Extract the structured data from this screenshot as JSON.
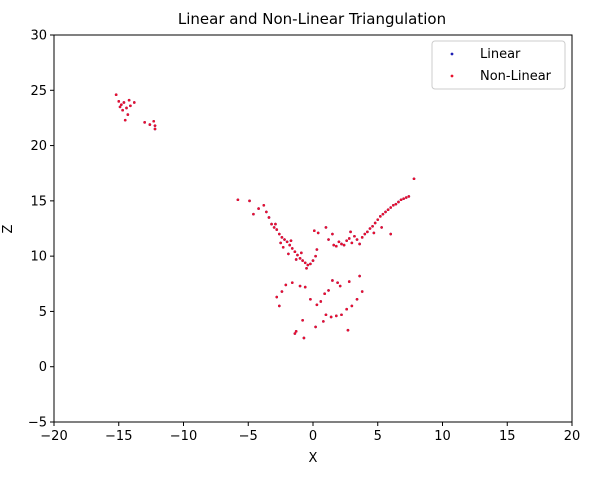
{
  "chart_data": {
    "type": "scatter",
    "title": "Linear and Non-Linear Triangulation",
    "xlabel": "X",
    "ylabel": "Z",
    "xlim": [
      -20,
      20
    ],
    "ylim": [
      -5,
      30
    ],
    "xticks": [
      "−20",
      "−15",
      "−10",
      "−5",
      "0",
      "5",
      "10",
      "15",
      "20"
    ],
    "xtick_values": [
      -20,
      -15,
      -10,
      -5,
      0,
      5,
      10,
      15,
      20
    ],
    "yticks": [
      "−5",
      "0",
      "5",
      "10",
      "15",
      "20",
      "25",
      "30"
    ],
    "ytick_values": [
      -5,
      0,
      5,
      10,
      15,
      20,
      25,
      30
    ],
    "grid": false,
    "legend_position": "top-right",
    "series": [
      {
        "name": "Linear",
        "color": "#1f1fb4",
        "points": [
          [
            -15.2,
            24.6
          ],
          [
            -15.0,
            24.0
          ],
          [
            -14.8,
            23.7
          ],
          [
            -14.6,
            23.9
          ],
          [
            -14.4,
            23.4
          ],
          [
            -14.7,
            23.2
          ],
          [
            -14.3,
            22.8
          ],
          [
            -14.5,
            22.3
          ],
          [
            -14.1,
            23.6
          ],
          [
            -13.8,
            23.9
          ],
          [
            -14.9,
            23.5
          ],
          [
            -14.2,
            24.1
          ],
          [
            -13.0,
            22.1
          ],
          [
            -12.6,
            21.9
          ],
          [
            -12.2,
            21.8
          ],
          [
            -12.2,
            21.5
          ],
          [
            -12.3,
            22.2
          ],
          [
            -5.8,
            15.1
          ],
          [
            -4.9,
            15.0
          ],
          [
            -4.6,
            13.8
          ],
          [
            -4.2,
            14.3
          ],
          [
            -3.8,
            14.6
          ],
          [
            -3.6,
            14.0
          ],
          [
            -3.4,
            13.5
          ],
          [
            -3.2,
            12.9
          ],
          [
            -3.0,
            12.6
          ],
          [
            -2.8,
            12.4
          ],
          [
            -2.6,
            12.0
          ],
          [
            -2.4,
            11.7
          ],
          [
            -2.2,
            11.5
          ],
          [
            -2.0,
            11.3
          ],
          [
            -1.8,
            11.0
          ],
          [
            -1.6,
            10.7
          ],
          [
            -1.4,
            10.4
          ],
          [
            -1.2,
            10.1
          ],
          [
            -1.0,
            9.8
          ],
          [
            -0.8,
            9.6
          ],
          [
            -0.6,
            9.4
          ],
          [
            -0.4,
            9.2
          ],
          [
            -0.2,
            9.3
          ],
          [
            0.0,
            9.6
          ],
          [
            0.2,
            10.0
          ],
          [
            -2.9,
            12.9
          ],
          [
            -2.5,
            11.2
          ],
          [
            -2.3,
            10.8
          ],
          [
            -1.7,
            11.4
          ],
          [
            -1.3,
            9.7
          ],
          [
            -0.9,
            10.3
          ],
          [
            -0.5,
            8.9
          ],
          [
            0.3,
            10.6
          ],
          [
            0.1,
            12.3
          ],
          [
            0.4,
            12.1
          ],
          [
            -1.9,
            10.2
          ],
          [
            1.2,
            11.5
          ],
          [
            1.6,
            11.0
          ],
          [
            1.8,
            10.9
          ],
          [
            2.0,
            11.3
          ],
          [
            2.2,
            11.1
          ],
          [
            2.4,
            11.0
          ],
          [
            2.6,
            11.4
          ],
          [
            2.8,
            11.6
          ],
          [
            3.0,
            11.2
          ],
          [
            3.2,
            11.8
          ],
          [
            3.4,
            11.5
          ],
          [
            3.6,
            11.1
          ],
          [
            2.9,
            12.2
          ],
          [
            1.0,
            12.6
          ],
          [
            1.5,
            12.0
          ],
          [
            3.8,
            11.7
          ],
          [
            4.0,
            12.0
          ],
          [
            4.2,
            12.2
          ],
          [
            4.4,
            12.5
          ],
          [
            4.6,
            12.7
          ],
          [
            4.8,
            13.0
          ],
          [
            5.0,
            13.3
          ],
          [
            5.2,
            13.6
          ],
          [
            5.4,
            13.8
          ],
          [
            5.6,
            14.0
          ],
          [
            5.8,
            14.2
          ],
          [
            6.0,
            14.4
          ],
          [
            6.2,
            14.6
          ],
          [
            6.4,
            14.7
          ],
          [
            6.6,
            14.9
          ],
          [
            6.8,
            15.1
          ],
          [
            7.0,
            15.2
          ],
          [
            7.2,
            15.3
          ],
          [
            7.4,
            15.4
          ],
          [
            7.8,
            17.0
          ],
          [
            6.0,
            12.0
          ],
          [
            4.7,
            12.1
          ],
          [
            5.3,
            12.6
          ],
          [
            -2.4,
            6.8
          ],
          [
            -2.1,
            7.4
          ],
          [
            -1.6,
            7.6
          ],
          [
            -1.0,
            7.3
          ],
          [
            -0.6,
            7.2
          ],
          [
            -2.8,
            6.3
          ],
          [
            -2.6,
            5.5
          ],
          [
            -0.2,
            6.1
          ],
          [
            0.3,
            5.6
          ],
          [
            0.6,
            5.9
          ],
          [
            0.9,
            6.6
          ],
          [
            1.2,
            6.9
          ],
          [
            1.5,
            7.8
          ],
          [
            1.9,
            7.6
          ],
          [
            2.1,
            7.3
          ],
          [
            2.8,
            7.7
          ],
          [
            3.6,
            8.2
          ],
          [
            3.8,
            6.8
          ],
          [
            3.4,
            6.1
          ],
          [
            3.0,
            5.5
          ],
          [
            2.6,
            5.2
          ],
          [
            2.2,
            4.7
          ],
          [
            1.8,
            4.6
          ],
          [
            1.4,
            4.5
          ],
          [
            1.0,
            4.7
          ],
          [
            0.8,
            4.1
          ],
          [
            0.2,
            3.6
          ],
          [
            -0.7,
            2.6
          ],
          [
            -1.3,
            3.2
          ],
          [
            -1.4,
            3.0
          ],
          [
            2.7,
            3.3
          ],
          [
            -0.8,
            4.2
          ]
        ]
      },
      {
        "name": "Non-Linear",
        "color": "#e8112d",
        "points": [
          [
            -15.2,
            24.6
          ],
          [
            -15.0,
            24.0
          ],
          [
            -14.8,
            23.7
          ],
          [
            -14.6,
            23.9
          ],
          [
            -14.4,
            23.4
          ],
          [
            -14.7,
            23.2
          ],
          [
            -14.3,
            22.8
          ],
          [
            -14.5,
            22.3
          ],
          [
            -14.1,
            23.6
          ],
          [
            -13.8,
            23.9
          ],
          [
            -14.9,
            23.5
          ],
          [
            -14.2,
            24.1
          ],
          [
            -13.0,
            22.1
          ],
          [
            -12.6,
            21.9
          ],
          [
            -12.2,
            21.8
          ],
          [
            -12.2,
            21.5
          ],
          [
            -12.3,
            22.2
          ],
          [
            -5.8,
            15.1
          ],
          [
            -4.9,
            15.0
          ],
          [
            -4.6,
            13.8
          ],
          [
            -4.2,
            14.3
          ],
          [
            -3.8,
            14.6
          ],
          [
            -3.6,
            14.0
          ],
          [
            -3.4,
            13.5
          ],
          [
            -3.2,
            12.9
          ],
          [
            -3.0,
            12.6
          ],
          [
            -2.8,
            12.4
          ],
          [
            -2.6,
            12.0
          ],
          [
            -2.4,
            11.7
          ],
          [
            -2.2,
            11.5
          ],
          [
            -2.0,
            11.3
          ],
          [
            -1.8,
            11.0
          ],
          [
            -1.6,
            10.7
          ],
          [
            -1.4,
            10.4
          ],
          [
            -1.2,
            10.1
          ],
          [
            -1.0,
            9.8
          ],
          [
            -0.8,
            9.6
          ],
          [
            -0.6,
            9.4
          ],
          [
            -0.4,
            9.2
          ],
          [
            -0.2,
            9.3
          ],
          [
            0.0,
            9.6
          ],
          [
            0.2,
            10.0
          ],
          [
            -2.9,
            12.9
          ],
          [
            -2.5,
            11.2
          ],
          [
            -2.3,
            10.8
          ],
          [
            -1.7,
            11.4
          ],
          [
            -1.3,
            9.7
          ],
          [
            -0.9,
            10.3
          ],
          [
            -0.5,
            8.9
          ],
          [
            0.3,
            10.6
          ],
          [
            0.1,
            12.3
          ],
          [
            0.4,
            12.1
          ],
          [
            -1.9,
            10.2
          ],
          [
            1.2,
            11.5
          ],
          [
            1.6,
            11.0
          ],
          [
            1.8,
            10.9
          ],
          [
            2.0,
            11.3
          ],
          [
            2.2,
            11.1
          ],
          [
            2.4,
            11.0
          ],
          [
            2.6,
            11.4
          ],
          [
            2.8,
            11.6
          ],
          [
            3.0,
            11.2
          ],
          [
            3.2,
            11.8
          ],
          [
            3.4,
            11.5
          ],
          [
            3.6,
            11.1
          ],
          [
            2.9,
            12.2
          ],
          [
            1.0,
            12.6
          ],
          [
            1.5,
            12.0
          ],
          [
            3.8,
            11.7
          ],
          [
            4.0,
            12.0
          ],
          [
            4.2,
            12.2
          ],
          [
            4.4,
            12.5
          ],
          [
            4.6,
            12.7
          ],
          [
            4.8,
            13.0
          ],
          [
            5.0,
            13.3
          ],
          [
            5.2,
            13.6
          ],
          [
            5.4,
            13.8
          ],
          [
            5.6,
            14.0
          ],
          [
            5.8,
            14.2
          ],
          [
            6.0,
            14.4
          ],
          [
            6.2,
            14.6
          ],
          [
            6.4,
            14.7
          ],
          [
            6.6,
            14.9
          ],
          [
            6.8,
            15.1
          ],
          [
            7.0,
            15.2
          ],
          [
            7.2,
            15.3
          ],
          [
            7.4,
            15.4
          ],
          [
            7.8,
            17.0
          ],
          [
            6.0,
            12.0
          ],
          [
            4.7,
            12.1
          ],
          [
            5.3,
            12.6
          ],
          [
            -2.4,
            6.8
          ],
          [
            -2.1,
            7.4
          ],
          [
            -1.6,
            7.6
          ],
          [
            -1.0,
            7.3
          ],
          [
            -0.6,
            7.2
          ],
          [
            -2.8,
            6.3
          ],
          [
            -2.6,
            5.5
          ],
          [
            -0.2,
            6.1
          ],
          [
            0.3,
            5.6
          ],
          [
            0.6,
            5.9
          ],
          [
            0.9,
            6.6
          ],
          [
            1.2,
            6.9
          ],
          [
            1.5,
            7.8
          ],
          [
            1.9,
            7.6
          ],
          [
            2.1,
            7.3
          ],
          [
            2.8,
            7.7
          ],
          [
            3.6,
            8.2
          ],
          [
            3.8,
            6.8
          ],
          [
            3.4,
            6.1
          ],
          [
            3.0,
            5.5
          ],
          [
            2.6,
            5.2
          ],
          [
            2.2,
            4.7
          ],
          [
            1.8,
            4.6
          ],
          [
            1.4,
            4.5
          ],
          [
            1.0,
            4.7
          ],
          [
            0.8,
            4.1
          ],
          [
            0.2,
            3.6
          ],
          [
            -0.7,
            2.6
          ],
          [
            -1.3,
            3.2
          ],
          [
            -1.4,
            3.0
          ],
          [
            2.7,
            3.3
          ],
          [
            -0.8,
            4.2
          ]
        ]
      }
    ]
  }
}
